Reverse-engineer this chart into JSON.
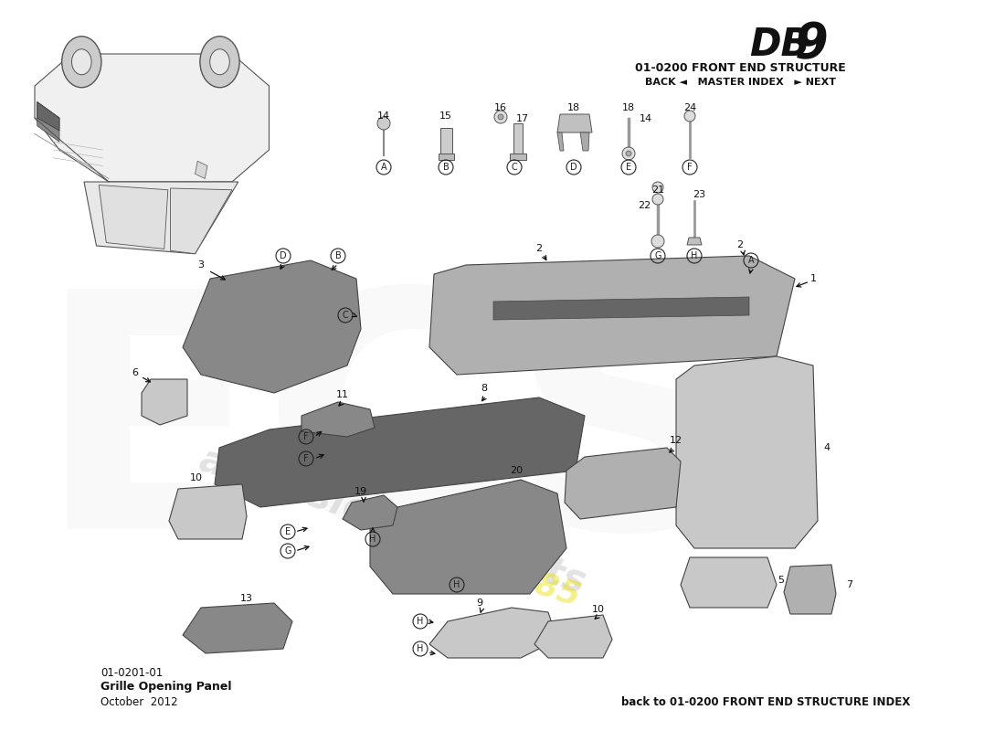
{
  "title_model_db": "DB",
  "title_model_9": "9",
  "title_section": "01-0200 FRONT END STRUCTURE",
  "title_nav": "BACK ◄   MASTER INDEX   ► NEXT",
  "part_number": "01-0201-01",
  "part_name": "Grille Opening Panel",
  "part_date": "October  2012",
  "footer_text": "back to 01-0200 FRONT END STRUCTURE INDEX",
  "bg_color": "#ffffff"
}
